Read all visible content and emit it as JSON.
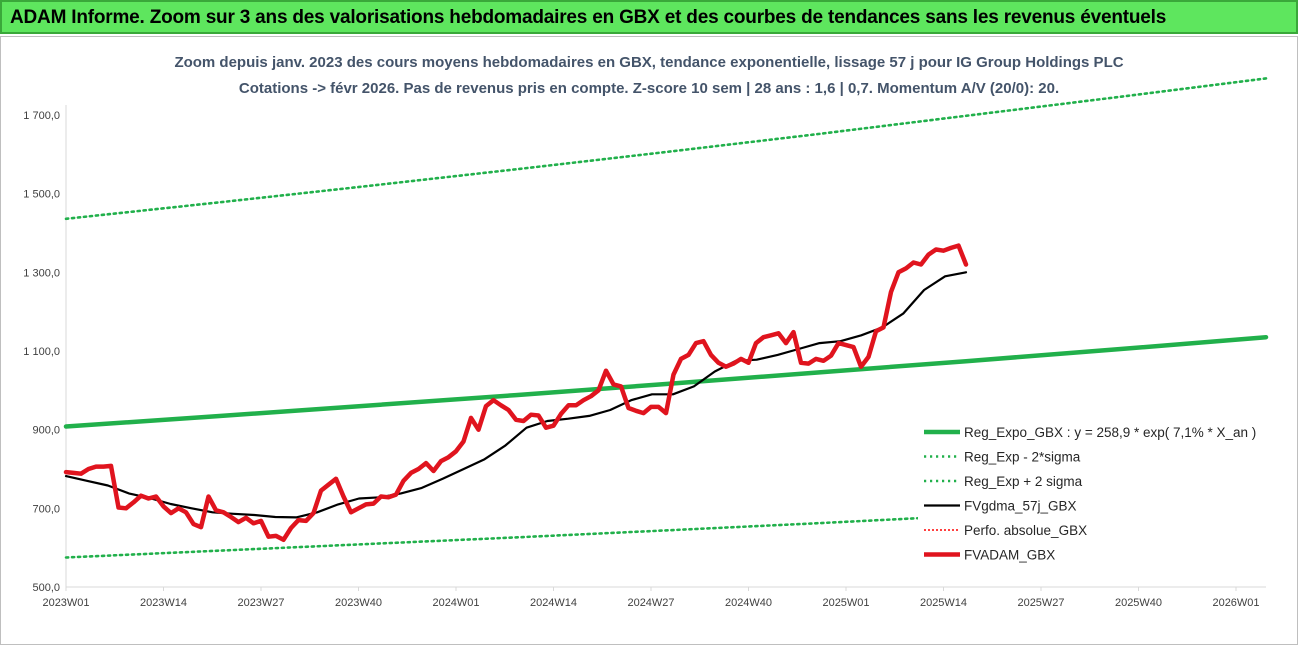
{
  "banner": {
    "text": "ADAM Informe. Zoom sur 3 ans des valorisations hebdomadaires en GBX et des courbes de tendances sans les revenus éventuels",
    "background": "#5ee65e"
  },
  "chart_data": {
    "type": "line",
    "title_lines": [
      "Zoom depuis janv. 2023 des cours moyens hebdomadaires en GBX, tendance exponentielle, lissage 57 j pour IG Group Holdings PLC",
      "Cotations -> févr 2026. Pas de revenus pris en compte. Z-score 10 sem | 28 ans : 1,6 | 0,7. Momentum A/V (20/0): 20."
    ],
    "x_tick_labels": [
      "2023W01",
      "2023W14",
      "2023W27",
      "2023W40",
      "2024W01",
      "2024W14",
      "2024W27",
      "2024W40",
      "2025W01",
      "2025W14",
      "2025W27",
      "2025W40",
      "2026W01"
    ],
    "y_tick_labels": [
      "500,0",
      "700,0",
      "900,0",
      "1 100,0",
      "1 300,0",
      "1 500,0",
      "1 700,0"
    ],
    "ylim": [
      500,
      1700
    ],
    "x_week_count": 161,
    "grid": false,
    "legend_position": "right",
    "series": [
      {
        "name": "Reg_Expo_GBX : y = 258,9 * exp( 7,1% *  X_an )",
        "color": "#21b04b",
        "style": "solid-thick",
        "values": [
          908,
          934,
          961,
          988,
          1016,
          1045,
          1074,
          1104,
          1135
        ],
        "x": [
          0,
          20,
          40,
          60,
          80,
          100,
          120,
          140,
          160
        ]
      },
      {
        "name": "Reg_Exp - 2*sigma",
        "color": "#21b04b",
        "style": "dotted",
        "values": [
          575,
          592,
          609,
          626,
          644,
          662,
          681,
          700,
          719
        ],
        "x": [
          0,
          20,
          40,
          60,
          80,
          100,
          120,
          140,
          160
        ]
      },
      {
        "name": "Reg_Exp + 2 sigma",
        "color": "#21b04b",
        "style": "dotted",
        "values": [
          1436,
          1477,
          1519,
          1562,
          1606,
          1651,
          1698,
          1745,
          1793
        ],
        "x": [
          0,
          20,
          40,
          60,
          80,
          100,
          120,
          140,
          160
        ]
      },
      {
        "name": "FVgdma_57j_GBX",
        "color": "#000000",
        "style": "solid",
        "values": [
          782,
          770,
          758,
          738,
          726,
          711,
          700,
          690,
          686,
          683,
          678,
          677,
          690,
          710,
          725,
          728,
          738,
          752,
          775,
          800,
          825,
          860,
          905,
          922,
          928,
          935,
          950,
          975,
          990,
          990,
          1010,
          1048,
          1075,
          1078,
          1090,
          1105,
          1120,
          1125,
          1140,
          1160,
          1195,
          1255,
          1290,
          1300
        ],
        "x": [
          0,
          8,
          14,
          20,
          26,
          32,
          38,
          44,
          50,
          56,
          62,
          68,
          74,
          80,
          86,
          92,
          98,
          104,
          110,
          116,
          122,
          128,
          134,
          140,
          146,
          152,
          158,
          64,
          70,
          76,
          82,
          88,
          94,
          100,
          106,
          112,
          118,
          124,
          130,
          136,
          142,
          148,
          154,
          160
        ]
      },
      {
        "name": "Perfo. absolue_GBX",
        "color": "#ff0000",
        "style": "dotted-thin",
        "values": []
      },
      {
        "name": "FVADAM_GBX",
        "color": "#e0141e",
        "style": "solid-thick",
        "values": [
          792,
          790,
          788,
          800,
          806,
          806,
          808,
          702,
          700,
          715,
          732,
          725,
          730,
          705,
          688,
          700,
          690,
          660,
          652,
          730,
          695,
          690,
          678,
          665,
          676,
          662,
          668,
          628,
          630,
          620,
          650,
          670,
          668,
          688,
          745,
          760,
          775,
          730,
          690,
          700,
          710,
          712,
          730,
          728,
          735,
          770,
          790,
          800,
          815,
          795,
          820,
          830,
          845,
          870,
          930,
          900,
          960,
          975,
          962,
          950,
          925,
          922,
          938,
          936,
          905,
          910,
          940,
          962,
          962,
          975,
          985,
          1000,
          1050,
          1015,
          1010,
          955,
          948,
          942,
          958,
          958,
          942,
          1040,
          1080,
          1090,
          1120,
          1125,
          1090,
          1070,
          1060,
          1068,
          1080,
          1070,
          1120,
          1135,
          1140,
          1145,
          1120,
          1148,
          1070,
          1068,
          1080,
          1075,
          1088,
          1120,
          1115,
          1110,
          1060,
          1085,
          1150,
          1160,
          1250,
          1300,
          1310,
          1325,
          1320,
          1345,
          1358,
          1355,
          1362,
          1368,
          1320
        ],
        "x": [
          0,
          1,
          2,
          3,
          4,
          5,
          6,
          7,
          8,
          9,
          10,
          11,
          12,
          13,
          14,
          15,
          16,
          17,
          18,
          19,
          20,
          21,
          22,
          23,
          24,
          25,
          26,
          27,
          28,
          29,
          30,
          31,
          32,
          33,
          34,
          35,
          36,
          37,
          38,
          39,
          40,
          41,
          42,
          43,
          44,
          45,
          46,
          47,
          48,
          49,
          50,
          51,
          52,
          53,
          54,
          55,
          56,
          57,
          58,
          59,
          60,
          61,
          62,
          63,
          64,
          65,
          66,
          67,
          68,
          69,
          70,
          71,
          72,
          73,
          74,
          75,
          76,
          77,
          78,
          79,
          80,
          81,
          82,
          83,
          84,
          85,
          86,
          87,
          88,
          89,
          90,
          91,
          92,
          93,
          94,
          95,
          96,
          97,
          98,
          99,
          100,
          101,
          102,
          103,
          104,
          105,
          106,
          107,
          108,
          109,
          110,
          111,
          112,
          113,
          114,
          115,
          116,
          117,
          118,
          119,
          120
        ]
      }
    ]
  }
}
